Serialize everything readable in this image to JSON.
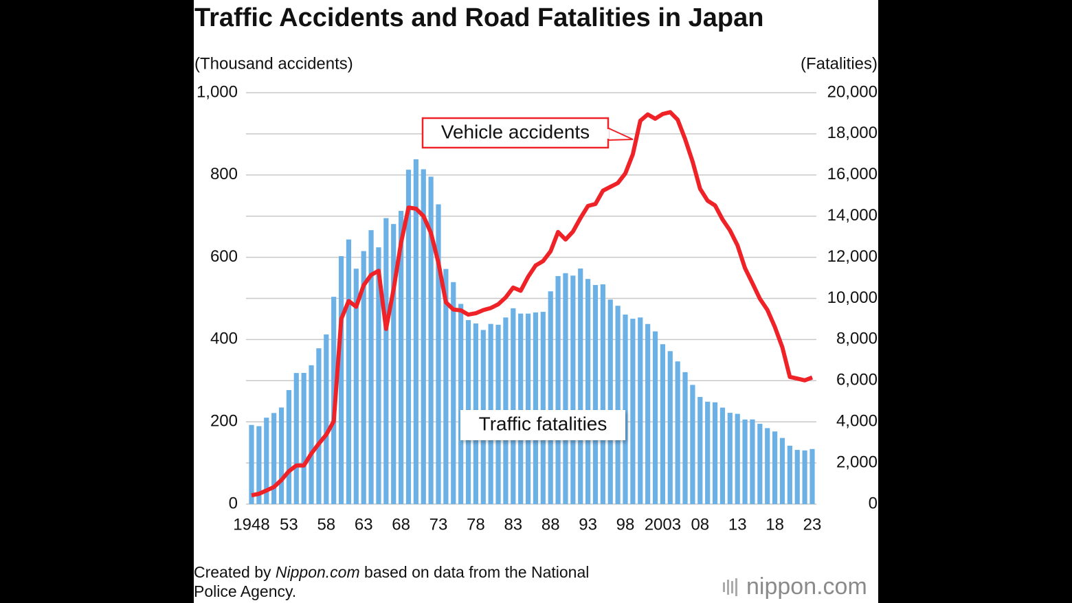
{
  "chart_data": {
    "type": "combo",
    "title": "Traffic Accidents and Road Fatalities in Japan",
    "y_label": "(Thousand accidents)",
    "y2_label": "(Fatalities)",
    "categories": [
      "1948",
      null,
      null,
      null,
      null,
      "53",
      null,
      null,
      null,
      null,
      "58",
      null,
      null,
      null,
      null,
      "63",
      null,
      null,
      null,
      null,
      "68",
      null,
      null,
      null,
      null,
      "73",
      null,
      null,
      null,
      null,
      "78",
      null,
      null,
      null,
      null,
      "83",
      null,
      null,
      null,
      null,
      "88",
      null,
      null,
      null,
      null,
      "93",
      null,
      null,
      null,
      null,
      "98",
      null,
      null,
      null,
      null,
      "2003",
      null,
      null,
      null,
      null,
      "08",
      null,
      null,
      null,
      null,
      "13",
      null,
      null,
      null,
      null,
      "18",
      null,
      null,
      null,
      null,
      "23"
    ],
    "ylim": [
      0,
      1000
    ],
    "yticks": [
      0,
      200,
      400,
      600,
      800,
      {
        "value": 1000,
        "label": "1,000"
      }
    ],
    "y2lim": [
      0,
      20000
    ],
    "y2ticks": [
      0,
      {
        "value": 2000,
        "label": "2,000"
      },
      {
        "value": 4000,
        "label": "4,000"
      },
      {
        "value": 6000,
        "label": "6,000"
      },
      {
        "value": 8000,
        "label": "8,000"
      },
      {
        "value": 10000,
        "label": "10,000"
      },
      {
        "value": 12000,
        "label": "12,000"
      },
      {
        "value": 14000,
        "label": "14,000"
      },
      {
        "value": 16000,
        "label": "16,000"
      },
      {
        "value": 18000,
        "label": "18,000"
      },
      {
        "value": 20000,
        "label": "20,000"
      }
    ],
    "grid": true,
    "series": [
      {
        "name": "Traffic fatalities",
        "type": "bar",
        "axis": "y2",
        "color": "#6cb1e6",
        "values": [
          3848,
          3790,
          4202,
          4429,
          4696,
          5544,
          6374,
          6379,
          6751,
          7575,
          8248,
          10079,
          12055,
          12865,
          11445,
          12301,
          13318,
          12484,
          13904,
          13618,
          14256,
          16257,
          16765,
          16278,
          15918,
          14574,
          11432,
          10792,
          9734,
          8945,
          8783,
          8466,
          8760,
          8719,
          9073,
          9520,
          9262,
          9261,
          9317,
          9347,
          10344,
          11086,
          11227,
          11109,
          11452,
          10945,
          10653,
          10684,
          9943,
          9642,
          9214,
          9012,
          9073,
          8757,
          8396,
          7774,
          7436,
          6937,
          6415,
          5796,
          5209,
          4979,
          4948,
          4691,
          4438,
          4388,
          4113,
          4117,
          3904,
          3694,
          3532,
          3215,
          2839,
          2636,
          2610,
          2678
        ]
      },
      {
        "name": "Vehicle accidents",
        "type": "line",
        "axis": "y",
        "color": "#ee2227",
        "values": [
          21.3,
          25.1,
          33.2,
          41.4,
          58.5,
          80.0,
          93.9,
          93.9,
          122.7,
          146.8,
          168.8,
          201.3,
          449.9,
          493.7,
          479.8,
          531.9,
          557.2,
          567.3,
          425.9,
          521.5,
          635.1,
          720.9,
          718.1,
          700.3,
          659.3,
          586.7,
          490.5,
          472.9,
          471.0,
          460.6,
          464.0,
          471.6,
          476.7,
          485.6,
          502.3,
          526.4,
          518.6,
          552.8,
          580.0,
          590.7,
          614.5,
          661.4,
          643.1,
          662.4,
          695.3,
          724.7,
          729.5,
          761.8,
          771.1,
          780.4,
          803.9,
          850.4,
          931.9,
          947.3,
          936.7,
          948.3,
          952.7,
          934.3,
          887.3,
          832.5,
          766.4,
          737.6,
          725.9,
          692.1,
          665.2,
          629.0,
          573.8,
          536.9,
          499.2,
          472.2,
          430.6,
          381.2,
          309.2,
          305.2,
          300.8,
          307.9
        ]
      }
    ],
    "source": [
      "Created by",
      "Nippon.com",
      "based on data from the National",
      "Police Agency."
    ],
    "logo": "nippon.com"
  }
}
